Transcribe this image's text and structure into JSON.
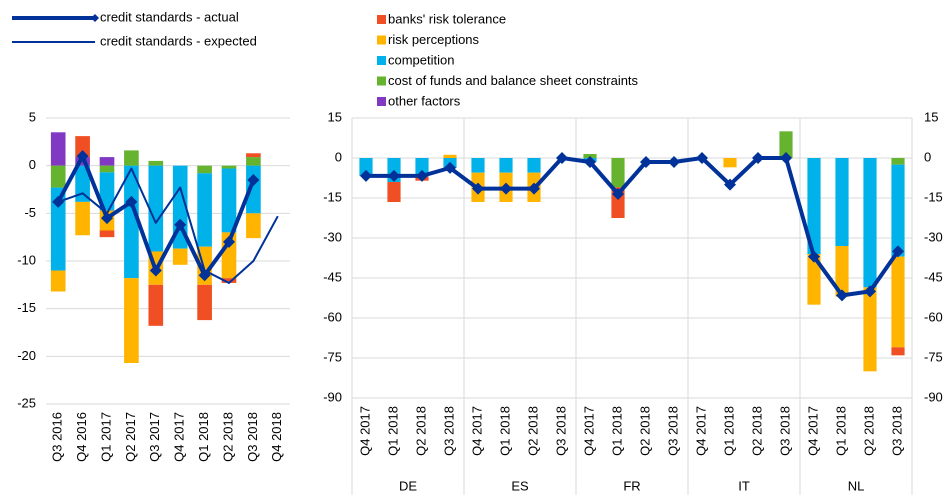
{
  "chart_data": [
    {
      "type": "bar",
      "categories": [
        "Q3 2016",
        "Q4 2016",
        "Q1 2017",
        "Q2 2017",
        "Q3 2017",
        "Q4 2017",
        "Q1 2018",
        "Q2 2018",
        "Q3 2018",
        "Q4 2018"
      ],
      "ylim": [
        -25,
        5
      ],
      "yticks": [
        5,
        0,
        -5,
        -10,
        -15,
        -20,
        -25
      ],
      "grid": true,
      "series": [
        {
          "name": "banks' risk tolerance",
          "type": "bar",
          "color": "#f04e23",
          "values": [
            0,
            2.2,
            -0.7,
            0,
            -4.3,
            0,
            -3.7,
            -0.5,
            0.4,
            0
          ]
        },
        {
          "name": "risk perceptions",
          "type": "bar",
          "color": "#ffb400",
          "values": [
            -2.2,
            -3.5,
            -2.1,
            -8.9,
            -3.5,
            -1.7,
            -4,
            -4.8,
            -2.6,
            0
          ]
        },
        {
          "name": "competition",
          "type": "bar",
          "color": "#00b1ea",
          "values": [
            -8.7,
            -3.8,
            -4,
            -11.8,
            -9,
            -8.7,
            -7.7,
            -6.7,
            -5,
            0
          ]
        },
        {
          "name": "cost of funds and balance sheet constraints",
          "type": "bar",
          "color": "#65b32e",
          "values": [
            -2.3,
            0,
            -0.7,
            1.6,
            0.5,
            0,
            -0.8,
            -0.3,
            0.9,
            0
          ]
        },
        {
          "name": "other factors",
          "type": "bar",
          "color": "#8139c4",
          "values": [
            3.5,
            0.9,
            0.9,
            0,
            0,
            0,
            0,
            0,
            0,
            0
          ]
        },
        {
          "name": "credit standards - actual",
          "type": "line",
          "color": "#003299",
          "width": 4,
          "marker": "diamond",
          "values": [
            -3.8,
            1.0,
            -5.5,
            -3.8,
            -11,
            -6.2,
            -11.5,
            -8,
            -1.5,
            null
          ]
        },
        {
          "name": "credit standards - expected",
          "type": "line",
          "color": "#003299",
          "width": 2,
          "values": [
            -3.8,
            -2.9,
            -5,
            -0.3,
            -6,
            -2.3,
            -11,
            -12.3,
            -10,
            -5.3
          ]
        }
      ]
    },
    {
      "type": "bar",
      "groups": [
        "DE",
        "ES",
        "FR",
        "IT",
        "NL"
      ],
      "categories": [
        "Q4 2017",
        "Q1 2018",
        "Q2 2018",
        "Q3 2018",
        "Q4 2017",
        "Q1 2018",
        "Q2 2018",
        "Q3 2018",
        "Q4 2017",
        "Q1 2018",
        "Q2 2018",
        "Q3 2018",
        "Q4 2017",
        "Q1 2018",
        "Q2 2018",
        "Q3 2018",
        "Q4 2017",
        "Q1 2018",
        "Q2 2018",
        "Q3 2018"
      ],
      "ylim": [
        -90,
        15
      ],
      "yticks": [
        15,
        0,
        -15,
        -30,
        -45,
        -60,
        -75,
        -90
      ],
      "grid": true,
      "series": [
        {
          "type": "bar",
          "color": "#f04e23",
          "values": [
            0,
            -7.5,
            -1.5,
            0,
            0,
            0,
            0,
            0,
            0,
            -11.5,
            0,
            0,
            0,
            0,
            0,
            0,
            0,
            0,
            0,
            -3
          ]
        },
        {
          "type": "bar",
          "color": "#ffb400",
          "values": [
            0,
            0,
            0,
            1.2,
            -11,
            -11,
            -11,
            0,
            0,
            0,
            0,
            0,
            0,
            -3.5,
            0,
            0,
            -19,
            -19,
            -31.5,
            -34
          ]
        },
        {
          "type": "bar",
          "color": "#00b1ea",
          "values": [
            -6.7,
            -9,
            -7,
            -3.7,
            -5.5,
            -5.5,
            -5.5,
            0,
            -1.5,
            0,
            0,
            0,
            0,
            0,
            0,
            0,
            -36,
            -33,
            -48.5,
            -34.5
          ]
        },
        {
          "type": "bar",
          "color": "#65b32e",
          "values": [
            0,
            0,
            0,
            0,
            0,
            0,
            0,
            0,
            1.5,
            -11,
            0,
            0,
            0,
            0,
            0,
            10,
            0,
            0,
            0,
            -2.5
          ]
        },
        {
          "type": "line",
          "color": "#003299",
          "width": 4,
          "marker": "diamond",
          "values": [
            -6.7,
            -6.7,
            -6.7,
            -3.7,
            -11.5,
            -11.5,
            -11.5,
            0,
            -1.5,
            -13.5,
            -1.5,
            -1.5,
            0,
            -10,
            0,
            0,
            -37,
            -51.5,
            -50,
            -35
          ]
        }
      ]
    }
  ]
}
